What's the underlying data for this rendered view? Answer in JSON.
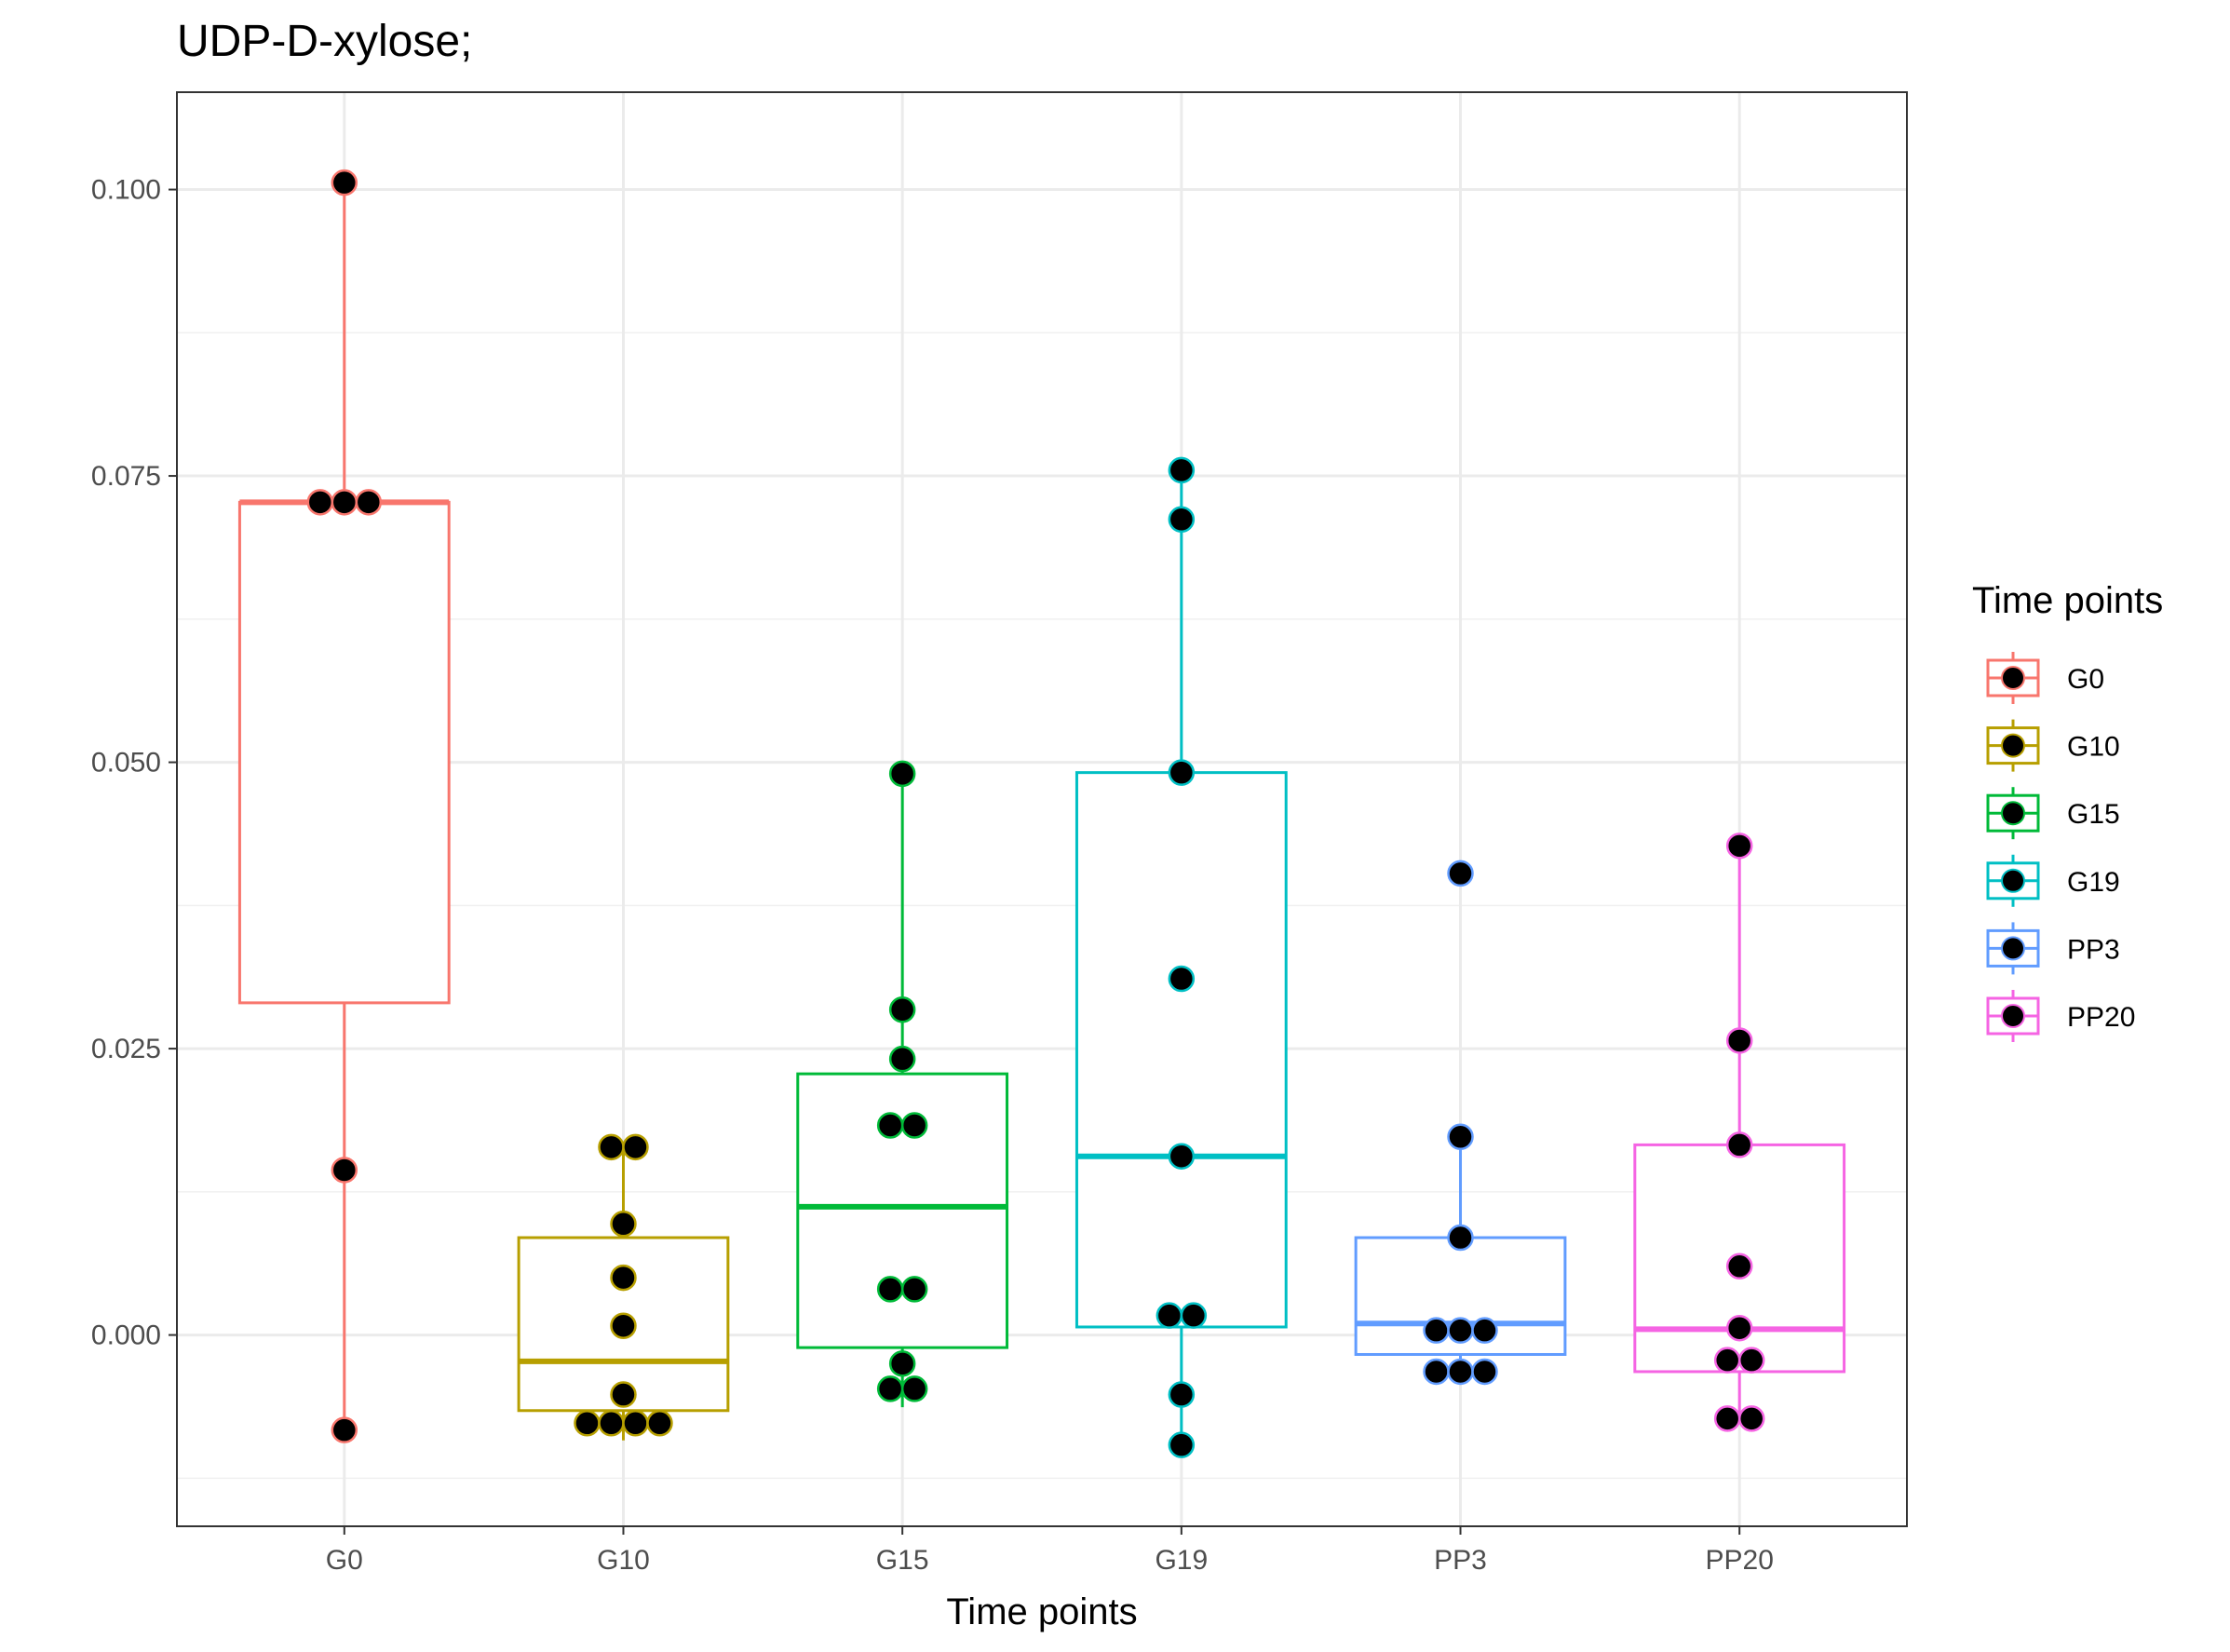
{
  "chart_data": {
    "type": "box",
    "title": "UDP-D-xylose;",
    "xlabel": "Time points",
    "ylabel": "",
    "ylim": [
      -0.0167,
      0.1085
    ],
    "yticks": [
      0.0,
      0.025,
      0.05,
      0.075,
      0.1
    ],
    "ytick_labels": [
      "0.000",
      "0.025",
      "0.050",
      "0.075",
      "0.100"
    ],
    "grid": true,
    "legend": {
      "title": "Time points",
      "position": "right"
    },
    "categories": [
      "G0",
      "G10",
      "G15",
      "G19",
      "PP3",
      "PP20"
    ],
    "colors": {
      "G0": "#F8766D",
      "G10": "#B79F00",
      "G15": "#00BA38",
      "G19": "#00BFC4",
      "PP3": "#619CFF",
      "PP20": "#F564E3"
    },
    "point_color": "#000000",
    "series": [
      {
        "name": "G0",
        "box": {
          "whisker_low": -0.0083,
          "q1": 0.029,
          "median": 0.0727,
          "q3": 0.0727,
          "whisker_high": 0.1006
        },
        "points": [
          0.1006,
          0.0727,
          0.0727,
          0.0727,
          0.0144,
          -0.0083
        ]
      },
      {
        "name": "G10",
        "box": {
          "whisker_low": -0.0092,
          "q1": -0.0066,
          "median": -0.0023,
          "q3": 0.0085,
          "whisker_high": 0.0164
        },
        "points": [
          0.0164,
          0.0164,
          0.0097,
          0.005,
          0.0008,
          -0.0052,
          -0.0077,
          -0.0077,
          -0.0077,
          -0.0077
        ]
      },
      {
        "name": "G15",
        "box": {
          "whisker_low": -0.0063,
          "q1": -0.0011,
          "median": 0.0112,
          "q3": 0.0228,
          "whisker_high": 0.049
        },
        "points": [
          0.049,
          0.0284,
          0.0241,
          0.0183,
          0.0183,
          0.004,
          0.004,
          -0.0025,
          -0.0047,
          -0.0047
        ]
      },
      {
        "name": "G19",
        "box": {
          "whisker_low": -0.0096,
          "q1": 0.0007,
          "median": 0.0156,
          "q3": 0.0491,
          "whisker_high": 0.0755
        },
        "points": [
          0.0755,
          0.0712,
          0.0491,
          0.0311,
          0.0156,
          0.0017,
          0.0017,
          -0.0052,
          -0.0096
        ]
      },
      {
        "name": "PP3",
        "box": {
          "whisker_low": -0.0033,
          "q1": -0.0017,
          "median": 0.001,
          "q3": 0.0085,
          "whisker_high": 0.0173
        },
        "points": [
          0.0403,
          0.0173,
          0.0085,
          0.0004,
          0.0004,
          0.0004,
          -0.0032,
          -0.0032,
          -0.0032
        ]
      },
      {
        "name": "PP20",
        "box": {
          "whisker_low": -0.0073,
          "q1": -0.0032,
          "median": 0.0005,
          "q3": 0.0166,
          "whisker_high": 0.0427
        },
        "points": [
          0.0427,
          0.0257,
          0.0166,
          0.006,
          0.0006,
          -0.0022,
          -0.0022,
          -0.0073,
          -0.0073
        ]
      }
    ]
  }
}
